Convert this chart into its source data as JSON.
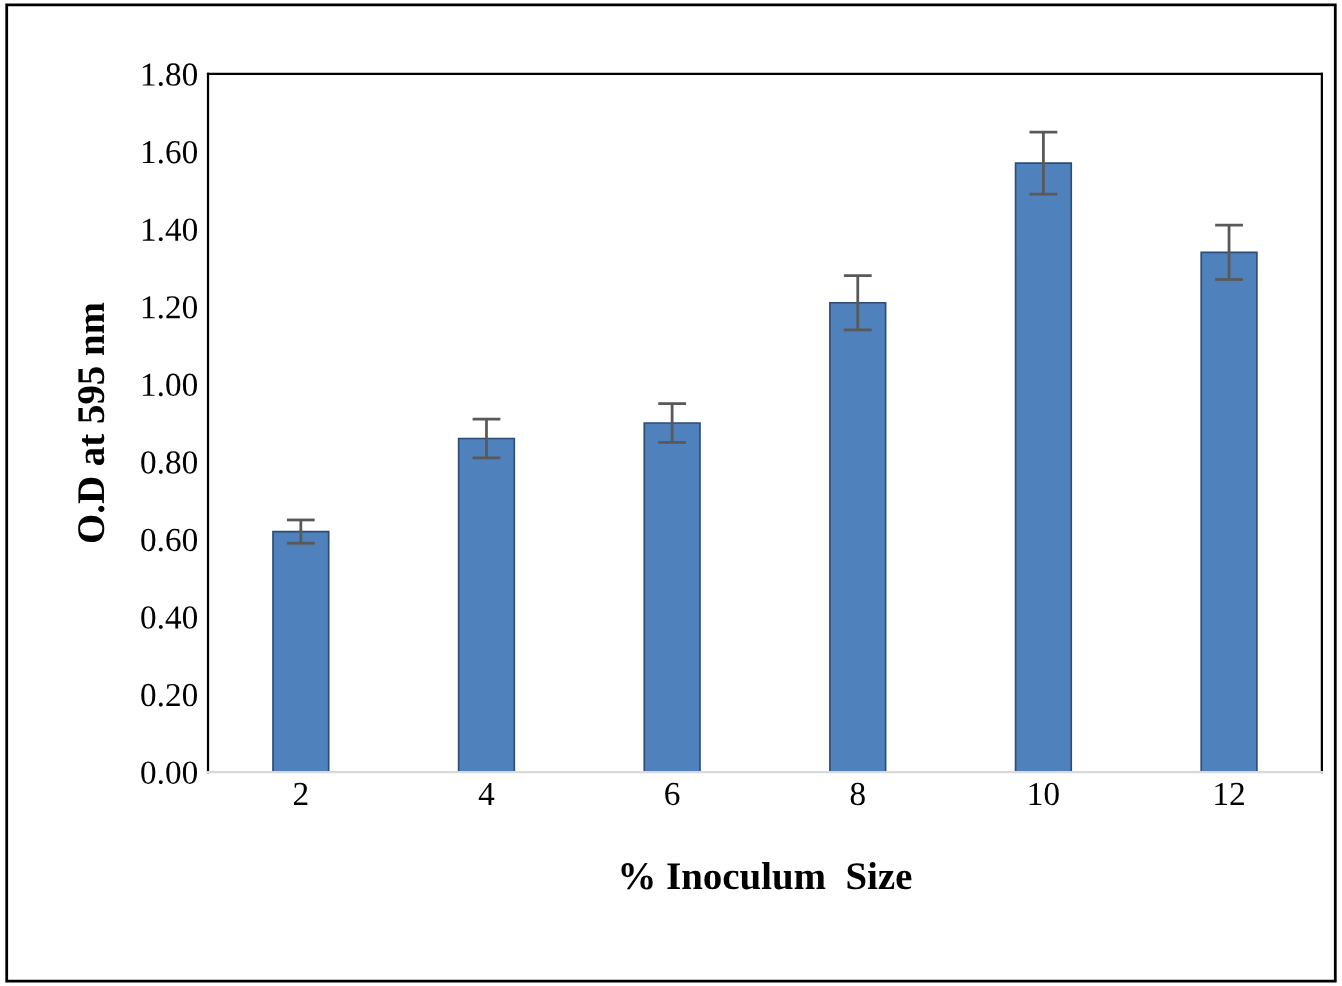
{
  "chart_data": {
    "type": "bar",
    "xlabel": "% Inoculum  Size",
    "ylabel": "O.D at 595 nm",
    "categories": [
      "2",
      "4",
      "6",
      "8",
      "10",
      "12"
    ],
    "series": [
      {
        "color": "#4f81bd",
        "values": [
          0.62,
          0.86,
          0.9,
          1.21,
          1.57,
          1.34
        ],
        "errors": [
          0.03,
          0.05,
          0.05,
          0.07,
          0.08,
          0.07
        ]
      }
    ],
    "ylim": [
      0,
      1.8
    ],
    "yticks": [
      {
        "value": 0,
        "label": "0.00"
      },
      {
        "value": 0.2,
        "label": "0.20"
      },
      {
        "value": 0.4,
        "label": "0.40"
      },
      {
        "value": 0.6,
        "label": "0.60"
      },
      {
        "value": 0.8,
        "label": "0.80"
      },
      {
        "value": 1.0,
        "label": "1.00"
      },
      {
        "value": 1.2,
        "label": "1.20"
      },
      {
        "value": 1.4,
        "label": "1.40"
      },
      {
        "value": 1.6,
        "label": "1.60"
      },
      {
        "value": 1.8,
        "label": "1.80"
      }
    ],
    "grid": false
  }
}
